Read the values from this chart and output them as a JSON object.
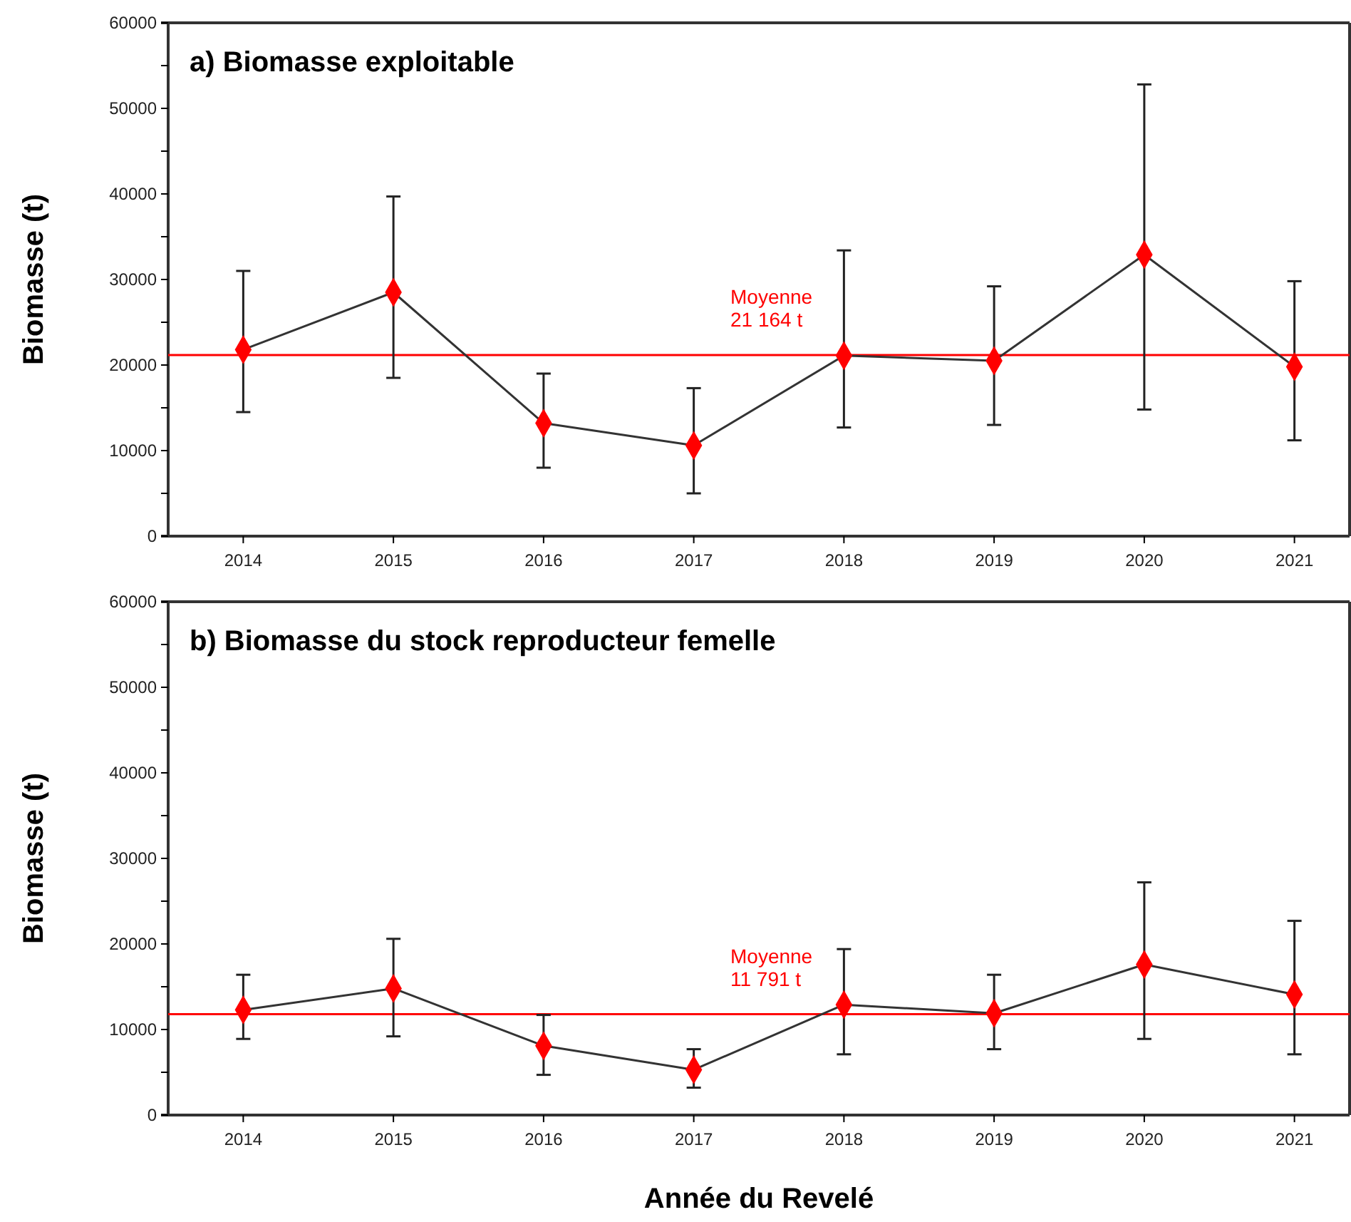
{
  "chart_data": [
    {
      "type": "line",
      "title": "a) Biomasse exploitable",
      "ylabel": "Biomasse (t)",
      "categories": [
        "2014",
        "2015",
        "2016",
        "2017",
        "2018",
        "2019",
        "2020",
        "2021"
      ],
      "series": [
        {
          "color": "#ff0000",
          "values": [
            21800,
            28500,
            13200,
            10600,
            21100,
            20500,
            32900,
            19800
          ],
          "errors": [
            [
              14500,
              31000
            ],
            [
              18500,
              39700
            ],
            [
              8000,
              19000
            ],
            [
              5000,
              17300
            ],
            [
              12700,
              33400
            ],
            [
              13000,
              29200
            ],
            [
              14800,
              52800
            ],
            [
              11200,
              29800
            ]
          ]
        }
      ],
      "ylim": [
        0,
        60000
      ],
      "yticks": [
        0,
        {
          "value": 5000,
          "label": null
        },
        10000,
        {
          "value": 15000,
          "label": null
        },
        20000,
        {
          "value": 25000,
          "label": null
        },
        30000,
        {
          "value": 35000,
          "label": null
        },
        40000,
        {
          "value": 45000,
          "label": null
        },
        50000,
        {
          "value": 55000,
          "label": null
        },
        60000
      ],
      "ref_lines": [
        {
          "axis": "y",
          "value": 21164,
          "label": "Moyenne\n21 164 t",
          "color": "#ff0000"
        }
      ],
      "marker": "diamond",
      "grid": false
    },
    {
      "type": "line",
      "title": "b) Biomasse du stock reproducteur femelle",
      "ylabel": "Biomasse (t)",
      "xlabel": "Année du Revelé",
      "categories": [
        "2014",
        "2015",
        "2016",
        "2017",
        "2018",
        "2019",
        "2020",
        "2021"
      ],
      "series": [
        {
          "color": "#ff0000",
          "values": [
            12300,
            14800,
            8100,
            5300,
            12900,
            11900,
            17600,
            14100
          ],
          "errors": [
            [
              8900,
              16400
            ],
            [
              9200,
              20600
            ],
            [
              4700,
              11700
            ],
            [
              3200,
              7700
            ],
            [
              7100,
              19400
            ],
            [
              7700,
              16400
            ],
            [
              8900,
              27200
            ],
            [
              7100,
              22700
            ]
          ]
        }
      ],
      "ylim": [
        0,
        60000
      ],
      "yticks": [
        0,
        {
          "value": 5000,
          "label": null
        },
        10000,
        {
          "value": 15000,
          "label": null
        },
        20000,
        {
          "value": 25000,
          "label": null
        },
        30000,
        {
          "value": 35000,
          "label": null
        },
        40000,
        {
          "value": 45000,
          "label": null
        },
        50000,
        {
          "value": 55000,
          "label": null
        },
        60000
      ],
      "ref_lines": [
        {
          "axis": "y",
          "value": 11791,
          "label": "Moyenne\n11 791 t",
          "color": "#ff0000"
        }
      ],
      "marker": "diamond",
      "grid": false
    }
  ]
}
